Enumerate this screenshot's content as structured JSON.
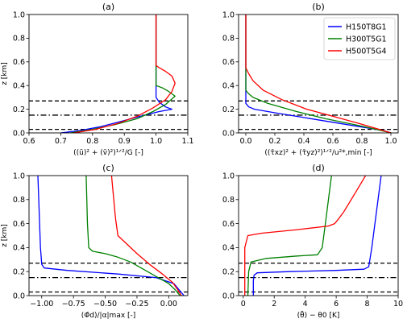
{
  "colors": {
    "H150T8G1": "#0000ff",
    "H300T5G1": "#008000",
    "H500T5G4": "#ff0000"
  },
  "chart_data": [
    {
      "type": "line",
      "title": "(a)",
      "xlabel": "((ū)² + (v̄)²)¹ᐟ²/G [-]",
      "ylabel": "z [km]",
      "xlim": [
        0.6,
        1.1
      ],
      "ylim": [
        0.0,
        1.0
      ],
      "xticks": [
        0.6,
        0.7,
        0.8,
        0.9,
        1.0,
        1.1
      ],
      "xticklabels": [
        "0.6",
        "0.7",
        "0.8",
        "0.9",
        "1.0",
        "1.1"
      ],
      "yticks": [
        0.0,
        0.2,
        0.4,
        0.6,
        0.8,
        1.0
      ],
      "yticklabels": [
        "0.0",
        "0.2",
        "0.4",
        "0.6",
        "0.8",
        "1.0"
      ],
      "hlines": [
        {
          "y": 0.03,
          "style": "dashed"
        },
        {
          "y": 0.15,
          "style": "dashdot"
        },
        {
          "y": 0.27,
          "style": "dashed"
        }
      ],
      "series": [
        {
          "key": "H150T8G1",
          "x": [
            0.7,
            0.76,
            0.82,
            0.88,
            0.95,
            1.01,
            1.05,
            1.03,
            1.01,
            1.0,
            1.0,
            1.0
          ],
          "y": [
            0.0,
            0.02,
            0.05,
            0.09,
            0.14,
            0.18,
            0.2,
            0.22,
            0.26,
            0.3,
            0.4,
            1.0
          ]
        },
        {
          "key": "H300T5G1",
          "x": [
            0.73,
            0.8,
            0.87,
            0.94,
            0.99,
            1.03,
            1.06,
            1.04,
            1.02,
            1.0,
            1.0,
            1.0,
            1.0
          ],
          "y": [
            0.0,
            0.03,
            0.07,
            0.12,
            0.18,
            0.24,
            0.31,
            0.35,
            0.38,
            0.4,
            0.45,
            0.55,
            1.0
          ]
        },
        {
          "key": "H500T5G4",
          "x": [
            0.74,
            0.81,
            0.88,
            0.94,
            0.99,
            1.03,
            1.05,
            1.06,
            1.05,
            1.03,
            1.01,
            1.0,
            1.0
          ],
          "y": [
            0.0,
            0.03,
            0.08,
            0.14,
            0.21,
            0.28,
            0.35,
            0.42,
            0.48,
            0.52,
            0.55,
            0.57,
            1.0
          ]
        }
      ]
    },
    {
      "type": "line",
      "title": "(b)",
      "xlabel": "((τ̄xz)² + (τ̄yz)²)¹ᐟ²/u²*,min [-]",
      "ylabel": "",
      "xlim": [
        -0.05,
        1.05
      ],
      "ylim": [
        0.0,
        1.0
      ],
      "xticks": [
        0.0,
        0.2,
        0.4,
        0.6,
        0.8,
        1.0
      ],
      "xticklabels": [
        "0.0",
        "0.2",
        "0.4",
        "0.6",
        "0.8",
        "1.0"
      ],
      "yticks": [
        0.0,
        0.2,
        0.4,
        0.6,
        0.8,
        1.0
      ],
      "yticklabels": [
        "0.0",
        "0.2",
        "0.4",
        "0.6",
        "0.8",
        "1.0"
      ],
      "hlines": [
        {
          "y": 0.03,
          "style": "dashed"
        },
        {
          "y": 0.15,
          "style": "dashdot"
        },
        {
          "y": 0.27,
          "style": "dashed"
        }
      ],
      "legend": {
        "placement": "top-right",
        "entries": [
          "H150T8G1",
          "H300T5G1",
          "H500T5G4"
        ]
      },
      "series": [
        {
          "key": "H150T8G1",
          "x": [
            1.0,
            0.95,
            0.8,
            0.6,
            0.4,
            0.2,
            0.06,
            0.02,
            0.0,
            0.0,
            0.0
          ],
          "y": [
            0.0,
            0.02,
            0.05,
            0.09,
            0.13,
            0.17,
            0.2,
            0.22,
            0.25,
            0.3,
            1.0
          ]
        },
        {
          "key": "H300T5G1",
          "x": [
            1.0,
            0.9,
            0.75,
            0.55,
            0.35,
            0.15,
            0.05,
            0.02,
            0.0,
            0.0
          ],
          "y": [
            0.0,
            0.03,
            0.07,
            0.12,
            0.18,
            0.25,
            0.3,
            0.33,
            0.36,
            1.0
          ]
        },
        {
          "key": "H500T5G4",
          "x": [
            1.0,
            0.92,
            0.78,
            0.6,
            0.42,
            0.25,
            0.12,
            0.05,
            0.02,
            0.0,
            0.0
          ],
          "y": [
            0.0,
            0.03,
            0.08,
            0.14,
            0.2,
            0.28,
            0.36,
            0.44,
            0.5,
            0.55,
            1.0
          ]
        }
      ]
    },
    {
      "type": "line",
      "title": "(c)",
      "xlabel": "(Φ̄d)/|α|max [-]",
      "ylabel": "z [km]",
      "xlim": [
        -1.1,
        0.15
      ],
      "ylim": [
        0.0,
        1.0
      ],
      "xticks": [
        -1.0,
        -0.75,
        -0.5,
        -0.25,
        0.0
      ],
      "xticklabels": [
        "−1.00",
        "−0.75",
        "−0.50",
        "−0.25",
        "0.00"
      ],
      "yticks": [
        0.0,
        0.2,
        0.4,
        0.6,
        0.8,
        1.0
      ],
      "yticklabels": [
        "0.0",
        "0.2",
        "0.4",
        "0.6",
        "0.8",
        "1.0"
      ],
      "hlines": [
        {
          "y": 0.03,
          "style": "dashed"
        },
        {
          "y": 0.15,
          "style": "dashdot"
        },
        {
          "y": 0.27,
          "style": "dashed"
        }
      ],
      "series": [
        {
          "key": "H150T8G1",
          "x": [
            0.12,
            0.08,
            0.04,
            -0.1,
            -0.4,
            -0.8,
            -0.98,
            -1.0,
            -1.01,
            -1.03
          ],
          "y": [
            0.0,
            0.05,
            0.1,
            0.15,
            0.18,
            0.21,
            0.23,
            0.26,
            0.4,
            1.0
          ]
        },
        {
          "key": "H300T5G1",
          "x": [
            0.09,
            0.05,
            0.0,
            -0.1,
            -0.2,
            -0.3,
            -0.4,
            -0.5,
            -0.6,
            -0.63,
            -0.64,
            -0.65
          ],
          "y": [
            0.0,
            0.05,
            0.1,
            0.16,
            0.22,
            0.28,
            0.32,
            0.35,
            0.37,
            0.4,
            0.6,
            1.0
          ]
        },
        {
          "key": "H500T5G4",
          "x": [
            0.1,
            0.07,
            0.03,
            -0.05,
            -0.15,
            -0.25,
            -0.32,
            -0.36,
            -0.4,
            -0.42,
            -0.45
          ],
          "y": [
            0.0,
            0.05,
            0.11,
            0.18,
            0.26,
            0.35,
            0.42,
            0.46,
            0.5,
            0.65,
            1.0
          ]
        }
      ]
    },
    {
      "type": "line",
      "title": "(d)",
      "xlabel": "(θ̄) − θ0 [K]",
      "ylabel": "",
      "xlim": [
        -0.3,
        10.0
      ],
      "ylim": [
        0.0,
        1.0
      ],
      "xticks": [
        0,
        2,
        4,
        6,
        8,
        10
      ],
      "xticklabels": [
        "0",
        "2",
        "4",
        "6",
        "8",
        "10"
      ],
      "yticks": [
        0.0,
        0.2,
        0.4,
        0.6,
        0.8,
        1.0
      ],
      "yticklabels": [
        "0.0",
        "0.2",
        "0.4",
        "0.6",
        "0.8",
        "1.0"
      ],
      "hlines": [
        {
          "y": 0.03,
          "style": "dashed"
        },
        {
          "y": 0.15,
          "style": "dashdot"
        },
        {
          "y": 0.27,
          "style": "dashed"
        }
      ],
      "series": [
        {
          "key": "H150T8G1",
          "x": [
            0.65,
            0.65,
            0.7,
            0.9,
            3.0,
            6.0,
            7.8,
            8.1,
            8.3,
            8.6,
            8.9
          ],
          "y": [
            0.0,
            0.12,
            0.17,
            0.19,
            0.2,
            0.21,
            0.22,
            0.24,
            0.4,
            0.7,
            1.0
          ]
        },
        {
          "key": "H300T5G1",
          "x": [
            0.3,
            0.35,
            0.5,
            1.5,
            3.5,
            4.8,
            5.1,
            5.3,
            5.5,
            5.7
          ],
          "y": [
            0.0,
            0.2,
            0.28,
            0.31,
            0.33,
            0.34,
            0.4,
            0.6,
            0.8,
            1.0
          ]
        },
        {
          "key": "H500T5G4",
          "x": [
            0.1,
            0.1,
            0.3,
            1.2,
            3.5,
            5.5,
            5.9,
            6.1,
            6.5,
            7.2,
            7.9
          ],
          "y": [
            0.0,
            0.4,
            0.5,
            0.52,
            0.55,
            0.58,
            0.6,
            0.63,
            0.7,
            0.85,
            1.0
          ]
        }
      ]
    }
  ]
}
